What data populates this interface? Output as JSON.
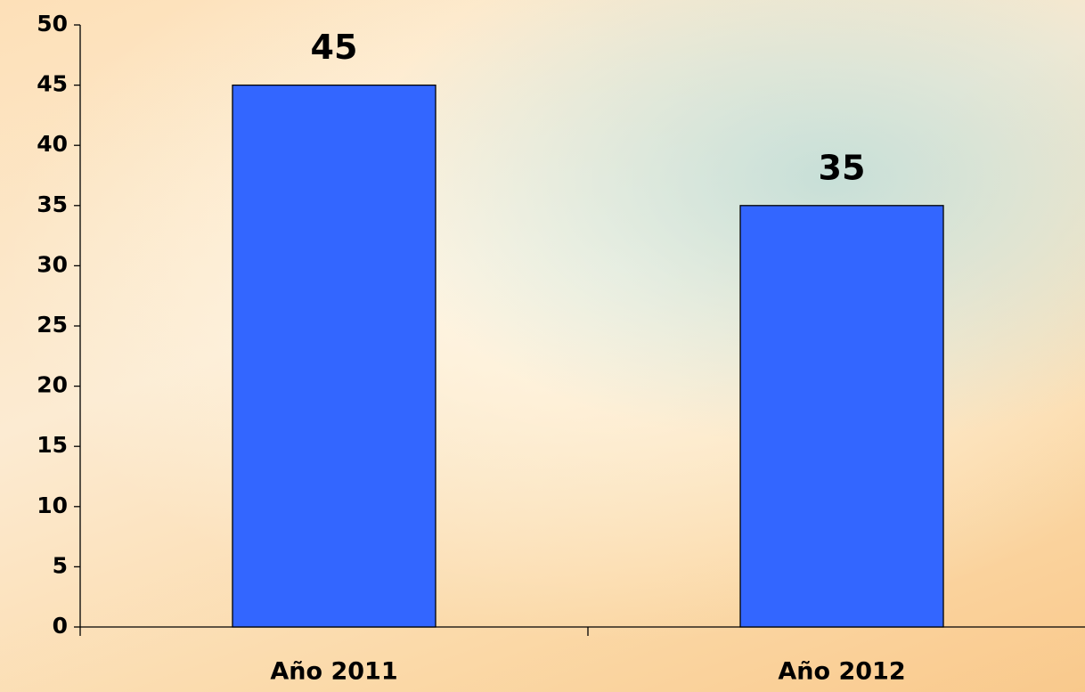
{
  "chart_data": {
    "type": "bar",
    "categories": [
      "Año 2011",
      "Año 2012"
    ],
    "values": [
      45,
      35
    ],
    "color": "#3366ff",
    "ylim": [
      0,
      50
    ],
    "yticks": [
      0,
      5,
      10,
      15,
      20,
      25,
      30,
      35,
      40,
      45,
      50
    ],
    "grid": false
  }
}
